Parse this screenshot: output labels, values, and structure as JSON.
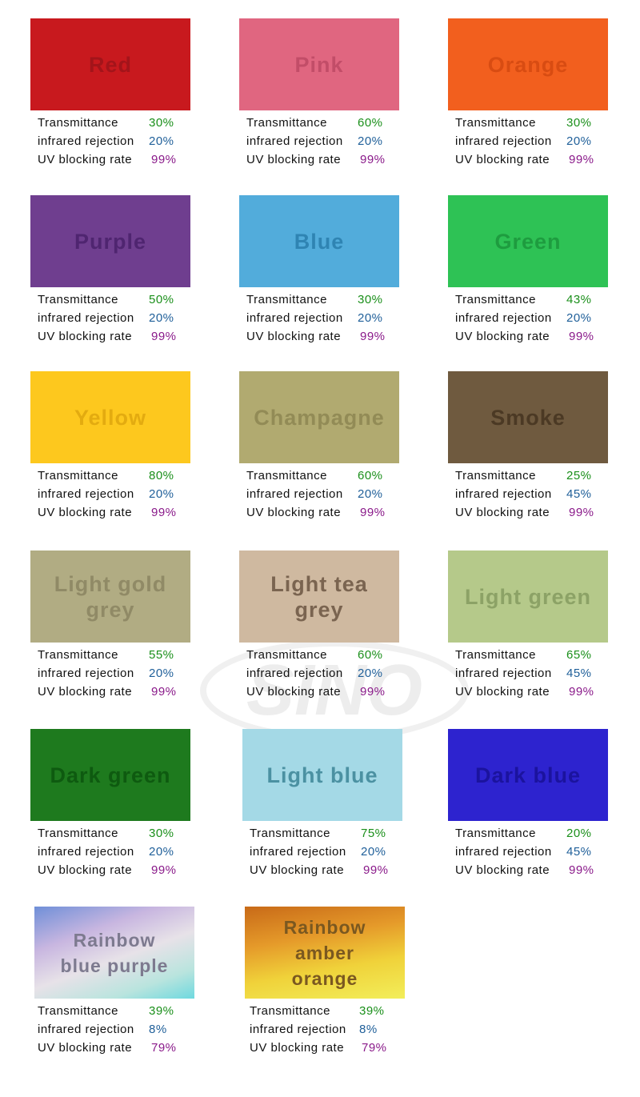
{
  "watermark": "SINO",
  "spec_labels": [
    "Transmittance",
    "infrared rejection",
    "UV blocking rate"
  ],
  "swatches": [
    {
      "name": "Red",
      "values": [
        "30%",
        "20%",
        "99%"
      ]
    },
    {
      "name": "Pink",
      "values": [
        "60%",
        "20%",
        "99%"
      ]
    },
    {
      "name": "Orange",
      "values": [
        "30%",
        "20%",
        "99%"
      ]
    },
    {
      "name": "Purple",
      "values": [
        "50%",
        "20%",
        "99%"
      ]
    },
    {
      "name": "Blue",
      "values": [
        "30%",
        "20%",
        "99%"
      ]
    },
    {
      "name": "Green",
      "values": [
        "43%",
        "20%",
        "99%"
      ]
    },
    {
      "name": "Yellow",
      "values": [
        "80%",
        "20%",
        "99%"
      ]
    },
    {
      "name": "Champagne",
      "values": [
        "60%",
        "20%",
        "99%"
      ]
    },
    {
      "name": "Smoke",
      "values": [
        "25%",
        "45%",
        "99%"
      ]
    },
    {
      "name": "Light gold grey",
      "values": [
        "55%",
        "20%",
        "99%"
      ]
    },
    {
      "name": "Light tea grey",
      "values": [
        "60%",
        "20%",
        "99%"
      ]
    },
    {
      "name": "Light green",
      "values": [
        "65%",
        "45%",
        "99%"
      ]
    },
    {
      "name": "Dark green",
      "values": [
        "30%",
        "20%",
        "99%"
      ]
    },
    {
      "name": "Light blue",
      "values": [
        "75%",
        "20%",
        "99%"
      ]
    },
    {
      "name": "Dark blue",
      "values": [
        "20%",
        "45%",
        "99%"
      ]
    },
    {
      "name": "Rainbow blue purple",
      "values": [
        "39%",
        "8%",
        "79%"
      ]
    },
    {
      "name": "Rainbow amber orange",
      "values": [
        "39%",
        "8%",
        "79%"
      ]
    }
  ]
}
